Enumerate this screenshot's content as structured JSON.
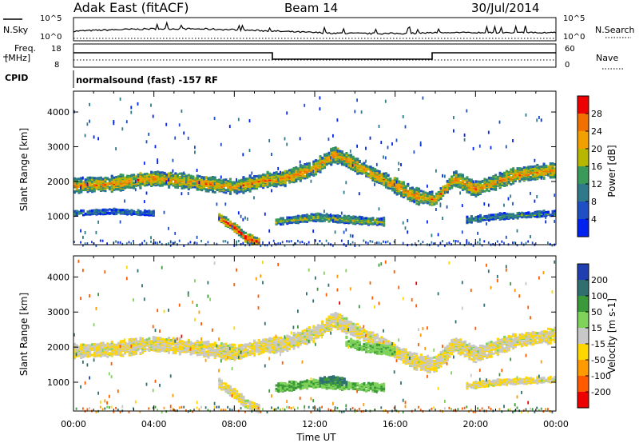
{
  "header": {
    "title": "Adak East (fitACF)",
    "beam": "Beam 14",
    "date": "30/Jul/2014"
  },
  "panels": {
    "nsky": {
      "left_label": "N.Sky",
      "right_label": "N.Search",
      "left_ticks": [
        "10^5",
        "10^0"
      ],
      "right_ticks": [
        "10^5",
        "10^0"
      ]
    },
    "freq": {
      "left_label_1": "Freq.",
      "left_label_2": "[MHz]",
      "right_label": "Nave",
      "left_ticks": [
        "18",
        "8"
      ],
      "right_ticks": [
        "60",
        "0"
      ]
    },
    "cpid": {
      "label": "CPID",
      "text": "normalsound (fast) -157 RF"
    }
  },
  "colorbars": {
    "power": {
      "label": "Power [dB]",
      "ticks": [
        "28",
        "24",
        "20",
        "16",
        "12",
        "8",
        "4"
      ],
      "colors": [
        "#0022ee",
        "#1f4fc4",
        "#2e7a8a",
        "#3a9a5a",
        "#b7b700",
        "#f2a000",
        "#f07000",
        "#ee0000"
      ]
    },
    "velocity": {
      "label": "Velocity [m s-1]",
      "ticks": [
        "200",
        "100",
        "50",
        "15",
        "-15",
        "-50",
        "-100",
        "-200"
      ],
      "colors": [
        "#1f3fb0",
        "#2f6f6f",
        "#3a9a3a",
        "#7fd25a",
        "#c8c8c8",
        "#ffd700",
        "#ff9a00",
        "#ff5a00",
        "#ee0000"
      ]
    }
  },
  "chart_data": [
    {
      "type": "heatmap",
      "name": "Power",
      "ylabel": "Slant Range [km]",
      "xlabel": "",
      "x_ticks": [
        "00:00",
        "04:00",
        "08:00",
        "12:00",
        "16:00",
        "20:00",
        "00:00"
      ],
      "y_ticks": [
        1000,
        2000,
        3000,
        4000
      ],
      "ylim": [
        180,
        4600
      ],
      "xlim_hours": [
        0,
        24
      ],
      "colorbar": "power",
      "bands": [
        {
          "t": [
            0,
            2,
            4,
            6,
            8,
            9.5,
            10.5,
            12,
            13,
            14,
            16,
            17,
            18,
            19,
            20,
            22,
            24
          ],
          "r": [
            1900,
            1950,
            2100,
            2000,
            1850,
            2050,
            2100,
            2400,
            2800,
            2500,
            1900,
            1600,
            1500,
            2100,
            1800,
            2200,
            2350
          ],
          "half_width": 180,
          "intensity": 0.75
        },
        {
          "t": [
            7.2,
            8,
            8.6,
            9.3
          ],
          "r": [
            1000,
            700,
            400,
            250
          ],
          "half_width": 110,
          "intensity": 0.95
        },
        {
          "t": [
            10,
            12,
            14,
            15.5
          ],
          "r": [
            850,
            980,
            900,
            850
          ],
          "half_width": 90,
          "intensity": 0.55
        },
        {
          "t": [
            0,
            2,
            4
          ],
          "r": [
            1100,
            1150,
            1100
          ],
          "half_width": 60,
          "intensity": 0.35
        },
        {
          "t": [
            19.5,
            21,
            22.5,
            24
          ],
          "r": [
            900,
            1000,
            1050,
            1100
          ],
          "half_width": 70,
          "intensity": 0.4
        }
      ]
    },
    {
      "type": "heatmap",
      "name": "Velocity",
      "ylabel": "Slant Range [km]",
      "xlabel": "Time UT",
      "x_ticks": [
        "00:00",
        "04:00",
        "08:00",
        "12:00",
        "16:00",
        "20:00",
        "00:00"
      ],
      "y_ticks": [
        1000,
        2000,
        3000,
        4000
      ],
      "ylim": [
        180,
        4600
      ],
      "xlim_hours": [
        0,
        24
      ],
      "colorbar": "velocity",
      "bands": [
        {
          "t": [
            0,
            2,
            4,
            6,
            8,
            9.5,
            10.5,
            12,
            13,
            14,
            16,
            17,
            18,
            19,
            20,
            22,
            24
          ],
          "r": [
            1900,
            1950,
            2100,
            2000,
            1850,
            2050,
            2100,
            2400,
            2800,
            2500,
            1900,
            1600,
            1500,
            2100,
            1800,
            2200,
            2350
          ],
          "half_width": 180,
          "velocity": -5
        },
        {
          "t": [
            10,
            12,
            14,
            15.5
          ],
          "r": [
            850,
            980,
            900,
            850
          ],
          "half_width": 100,
          "velocity": 30
        },
        {
          "t": [
            12.2,
            13,
            13.6
          ],
          "r": [
            1050,
            1100,
            1000
          ],
          "half_width": 90,
          "velocity": 80
        },
        {
          "t": [
            13.5,
            14.5,
            16
          ],
          "r": [
            2200,
            2000,
            1900
          ],
          "half_width": 110,
          "velocity": 25
        },
        {
          "t": [
            7.2,
            8,
            8.6,
            9.3
          ],
          "r": [
            1000,
            700,
            400,
            250
          ],
          "half_width": 110,
          "velocity": -5
        },
        {
          "t": [
            19.5,
            21,
            22.5,
            24
          ],
          "r": [
            900,
            1000,
            1050,
            1100
          ],
          "half_width": 70,
          "velocity": -5
        }
      ]
    }
  ]
}
